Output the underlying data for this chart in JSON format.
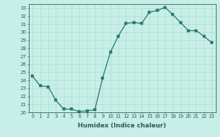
{
  "x": [
    0,
    1,
    2,
    3,
    4,
    5,
    6,
    7,
    8,
    9,
    10,
    11,
    12,
    13,
    14,
    15,
    16,
    17,
    18,
    19,
    20,
    21,
    22,
    23
  ],
  "y": [
    24.5,
    23.3,
    23.2,
    21.5,
    20.4,
    20.4,
    20.1,
    20.2,
    20.3,
    24.3,
    27.5,
    29.5,
    31.1,
    31.2,
    31.1,
    32.5,
    32.7,
    33.1,
    32.2,
    31.2,
    30.2,
    30.2,
    29.5,
    28.7
  ],
  "line_color": "#2a7a6f",
  "marker_color": "#2a7a6f",
  "bg_color": "#c8eee8",
  "grid_color": "#aaddcc",
  "xlabel": "Humidex (Indice chaleur)",
  "xlim": [
    -0.5,
    23.5
  ],
  "ylim": [
    20,
    33.5
  ],
  "yticks": [
    20,
    21,
    22,
    23,
    24,
    25,
    26,
    27,
    28,
    29,
    30,
    31,
    32,
    33
  ],
  "xticks": [
    0,
    1,
    2,
    3,
    4,
    5,
    6,
    7,
    8,
    9,
    10,
    11,
    12,
    13,
    14,
    15,
    16,
    17,
    18,
    19,
    20,
    21,
    22,
    23
  ],
  "font_color": "#2a5a50",
  "line_width": 1.0,
  "marker_size": 2.5,
  "tick_fontsize": 5.0,
  "xlabel_fontsize": 6.5
}
